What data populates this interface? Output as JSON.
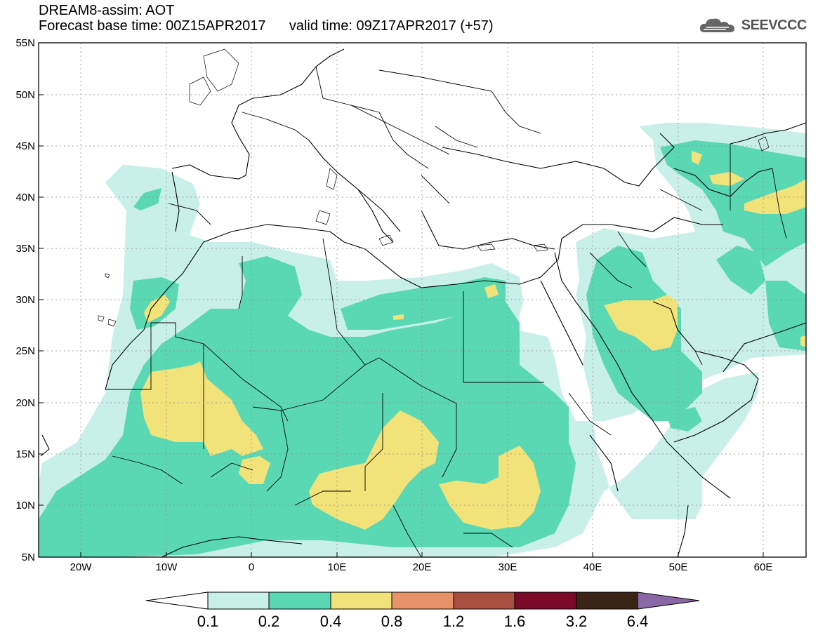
{
  "title": {
    "line1": "DREAM8-assim: AOT",
    "base_label": "Forecast base time: 00Z15APR2017",
    "valid_label": "valid time: 09Z17APR2017 (+57)"
  },
  "logo": {
    "text": "SEEVCCC",
    "icon": "cloud-icon"
  },
  "map": {
    "lat_ticks": [
      "55N",
      "50N",
      "45N",
      "40N",
      "35N",
      "30N",
      "25N",
      "20N",
      "15N",
      "10N",
      "5N"
    ],
    "lon_ticks": [
      "20W",
      "10W",
      "0",
      "10E",
      "20E",
      "30E",
      "40E",
      "50E",
      "60E"
    ],
    "lon_range": [
      -25,
      65
    ],
    "lat_range": [
      5,
      55
    ]
  },
  "legend": {
    "labels": [
      "0.1",
      "0.2",
      "0.4",
      "0.8",
      "1.2",
      "1.6",
      "3.2",
      "6.4"
    ],
    "colors": {
      "under": "#ffffff",
      "c1": "#c8f0e8",
      "c2": "#5ad8b4",
      "c3": "#f2e27a",
      "c4": "#e8926a",
      "c5": "#a85040",
      "c6": "#7a0a28",
      "c7": "#3a2416",
      "over": "#8a68a8"
    }
  }
}
